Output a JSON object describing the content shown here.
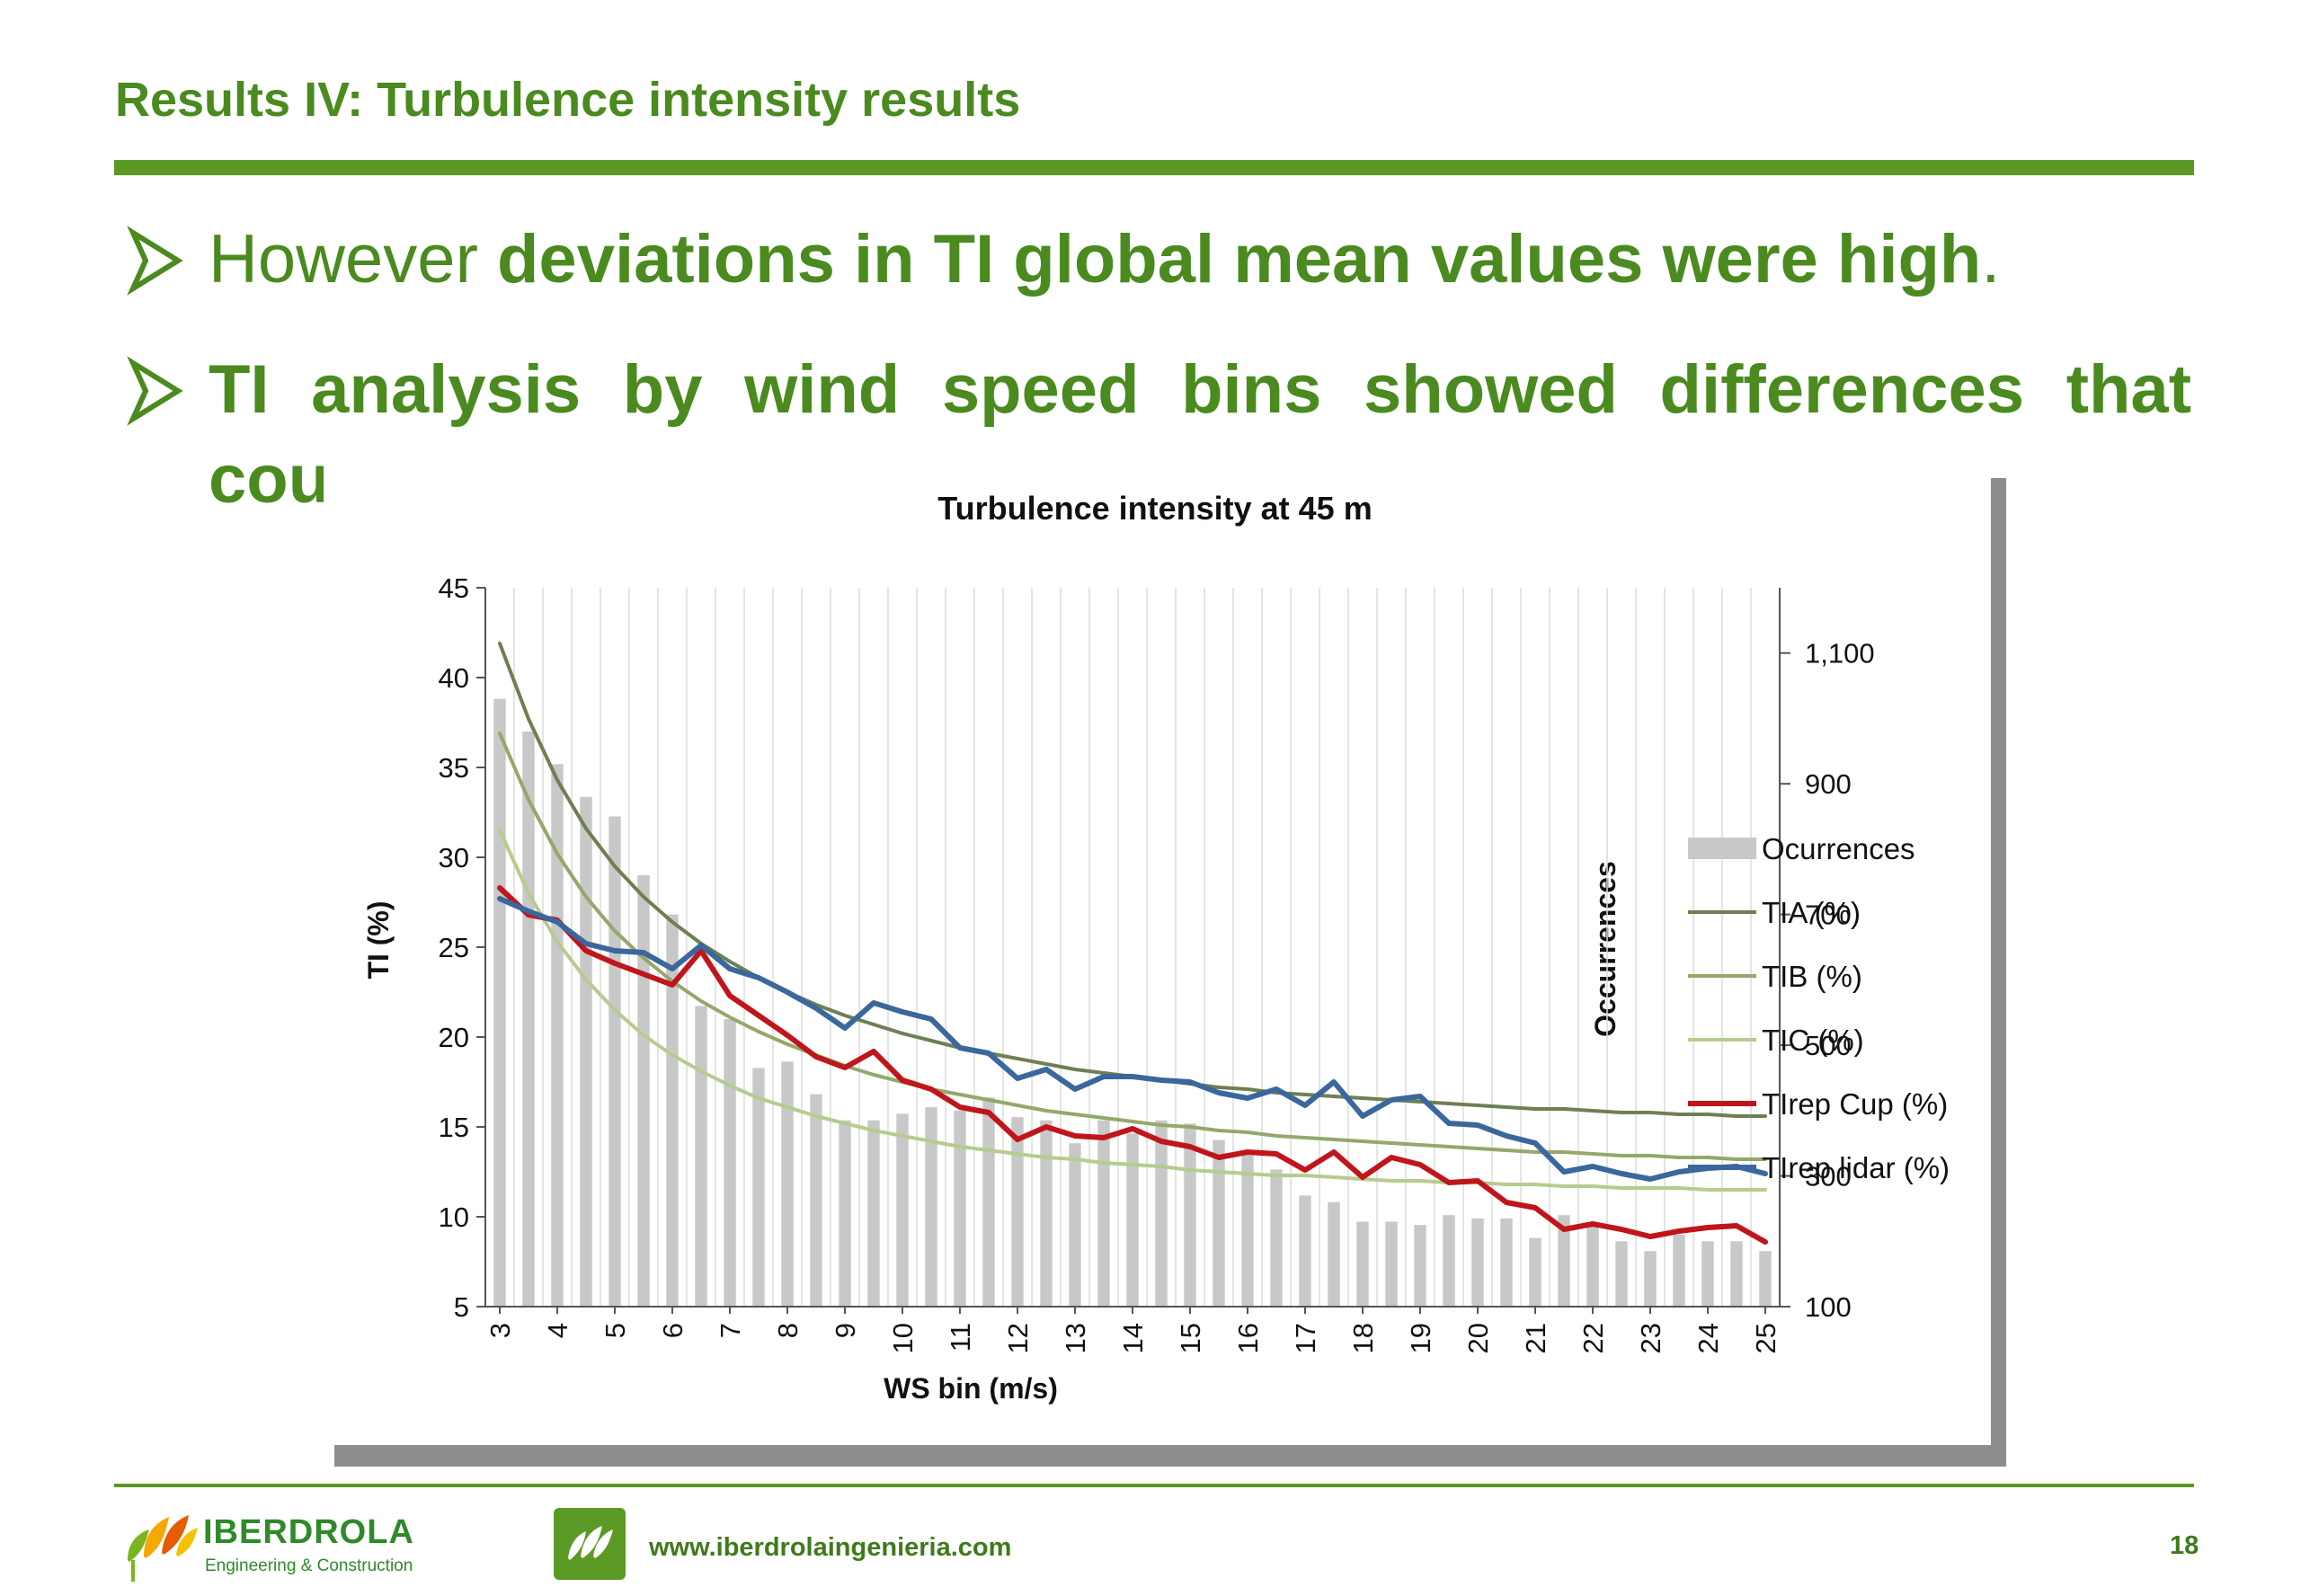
{
  "slide": {
    "title": "Results IV: Turbulence intensity results",
    "bullet1_prefix": "However ",
    "bullet1_bold": "deviations in TI global mean values  were high",
    "bullet1_suffix": ".",
    "bullet2_line1": "TI analysis by wind speed bins showed differences that",
    "bullet2_line2": "cou"
  },
  "footer": {
    "logo_name": "IBERDROLA",
    "logo_sub": "Engineering & Construction",
    "url": "www.iberdrolaingenieria.com",
    "page_number": "18"
  },
  "colors": {
    "slide_green": "#4a8a1f",
    "bars": "#c8c8c8",
    "TIA": "#6e7f52",
    "TIB": "#93a86a",
    "TIC": "#b5cc8e",
    "cup": "#c0151b",
    "lidar": "#3a679c"
  },
  "chart_data": {
    "type": "bar+line",
    "title": "Turbulence intensity at 45 m",
    "xlabel": "WS bin (m/s)",
    "ylabel": "TI (%)",
    "y2label": "Occurrences",
    "categories": [
      3,
      3.5,
      4,
      4.5,
      5,
      5.5,
      6,
      6.5,
      7,
      7.5,
      8,
      8.5,
      9,
      9.5,
      10,
      10.5,
      11,
      11.5,
      12,
      12.5,
      13,
      13.5,
      14,
      14.5,
      15,
      15.5,
      16,
      16.5,
      17,
      17.5,
      18,
      18.5,
      19,
      19.5,
      20,
      20.5,
      21,
      21.5,
      22,
      22.5,
      23,
      23.5,
      24,
      24.5,
      25
    ],
    "x_tick_labels": [
      "3",
      "4",
      "5",
      "6",
      "7",
      "8",
      "9",
      "10",
      "11",
      "12",
      "13",
      "14",
      "15",
      "16",
      "17",
      "18",
      "19",
      "20",
      "21",
      "22",
      "23",
      "24",
      "25"
    ],
    "ylim": [
      5,
      45
    ],
    "yticks": [
      "5",
      "10",
      "15",
      "20",
      "25",
      "30",
      "35",
      "40",
      "45"
    ],
    "y2lim": [
      100,
      1200
    ],
    "y2ticks": [
      "100",
      "300",
      "500",
      "700",
      "900",
      "1,100"
    ],
    "legend_position": "right",
    "grid": "vertical",
    "bars": {
      "name": "Ocurrences",
      "values": [
        1030,
        980,
        930,
        880,
        850,
        760,
        700,
        560,
        540,
        465,
        475,
        425,
        385,
        385,
        395,
        405,
        400,
        420,
        390,
        385,
        350,
        385,
        365,
        385,
        380,
        355,
        335,
        310,
        270,
        260,
        230,
        230,
        225,
        240,
        235,
        235,
        205,
        240,
        225,
        200,
        185,
        210,
        200,
        200,
        185
      ]
    },
    "series": [
      {
        "name": "TIA (%)",
        "values": [
          41.9,
          37.7,
          34.3,
          31.6,
          29.5,
          27.8,
          26.4,
          25.2,
          24.2,
          23.3,
          22.5,
          21.8,
          21.2,
          20.7,
          20.2,
          19.8,
          19.4,
          19.1,
          18.8,
          18.5,
          18.2,
          18.0,
          17.8,
          17.6,
          17.4,
          17.2,
          17.1,
          16.9,
          16.8,
          16.7,
          16.6,
          16.5,
          16.4,
          16.3,
          16.2,
          16.1,
          16.0,
          16.0,
          15.9,
          15.8,
          15.8,
          15.7,
          15.7,
          15.6,
          15.6
        ]
      },
      {
        "name": "TIB (%)",
        "values": [
          36.9,
          33.2,
          30.2,
          27.8,
          25.9,
          24.4,
          23.1,
          22.0,
          21.1,
          20.3,
          19.6,
          19.0,
          18.4,
          17.9,
          17.5,
          17.1,
          16.8,
          16.5,
          16.2,
          15.9,
          15.7,
          15.5,
          15.3,
          15.1,
          15.0,
          14.8,
          14.7,
          14.5,
          14.4,
          14.3,
          14.2,
          14.1,
          14.0,
          13.9,
          13.8,
          13.7,
          13.6,
          13.6,
          13.5,
          13.4,
          13.4,
          13.3,
          13.3,
          13.2,
          13.2
        ]
      },
      {
        "name": "TIC (%)",
        "values": [
          31.5,
          28.0,
          25.3,
          23.2,
          21.5,
          20.1,
          19.0,
          18.1,
          17.3,
          16.6,
          16.1,
          15.6,
          15.2,
          14.8,
          14.5,
          14.2,
          13.9,
          13.7,
          13.5,
          13.3,
          13.2,
          13.0,
          12.9,
          12.8,
          12.6,
          12.5,
          12.4,
          12.3,
          12.3,
          12.2,
          12.1,
          12.0,
          12.0,
          11.9,
          11.9,
          11.8,
          11.8,
          11.7,
          11.7,
          11.6,
          11.6,
          11.6,
          11.5,
          11.5,
          11.5
        ]
      },
      {
        "name": "TIrep Cup  (%)",
        "values": [
          28.3,
          26.8,
          26.5,
          24.8,
          24.1,
          23.5,
          22.9,
          24.8,
          22.3,
          21.2,
          20.1,
          18.9,
          18.3,
          19.2,
          17.6,
          17.1,
          16.1,
          15.8,
          14.3,
          15.0,
          14.5,
          14.4,
          14.9,
          14.2,
          13.9,
          13.3,
          13.6,
          13.5,
          12.6,
          13.6,
          12.2,
          13.3,
          12.9,
          11.9,
          12.0,
          10.8,
          10.5,
          9.3,
          9.6,
          9.3,
          8.9,
          9.2,
          9.4,
          9.5,
          8.6
        ]
      },
      {
        "name": "TIrep lidar  (%)",
        "values": [
          27.7,
          27.0,
          26.4,
          25.2,
          24.8,
          24.7,
          23.8,
          25.1,
          23.8,
          23.3,
          22.5,
          21.6,
          20.5,
          21.9,
          21.4,
          21.0,
          19.4,
          19.1,
          17.7,
          18.2,
          17.1,
          17.8,
          17.8,
          17.6,
          17.5,
          16.9,
          16.6,
          17.1,
          16.2,
          17.5,
          15.6,
          16.5,
          16.7,
          15.2,
          15.1,
          14.5,
          14.1,
          12.5,
          12.8,
          12.4,
          12.1,
          12.5,
          12.7,
          12.8,
          12.4
        ]
      }
    ]
  }
}
